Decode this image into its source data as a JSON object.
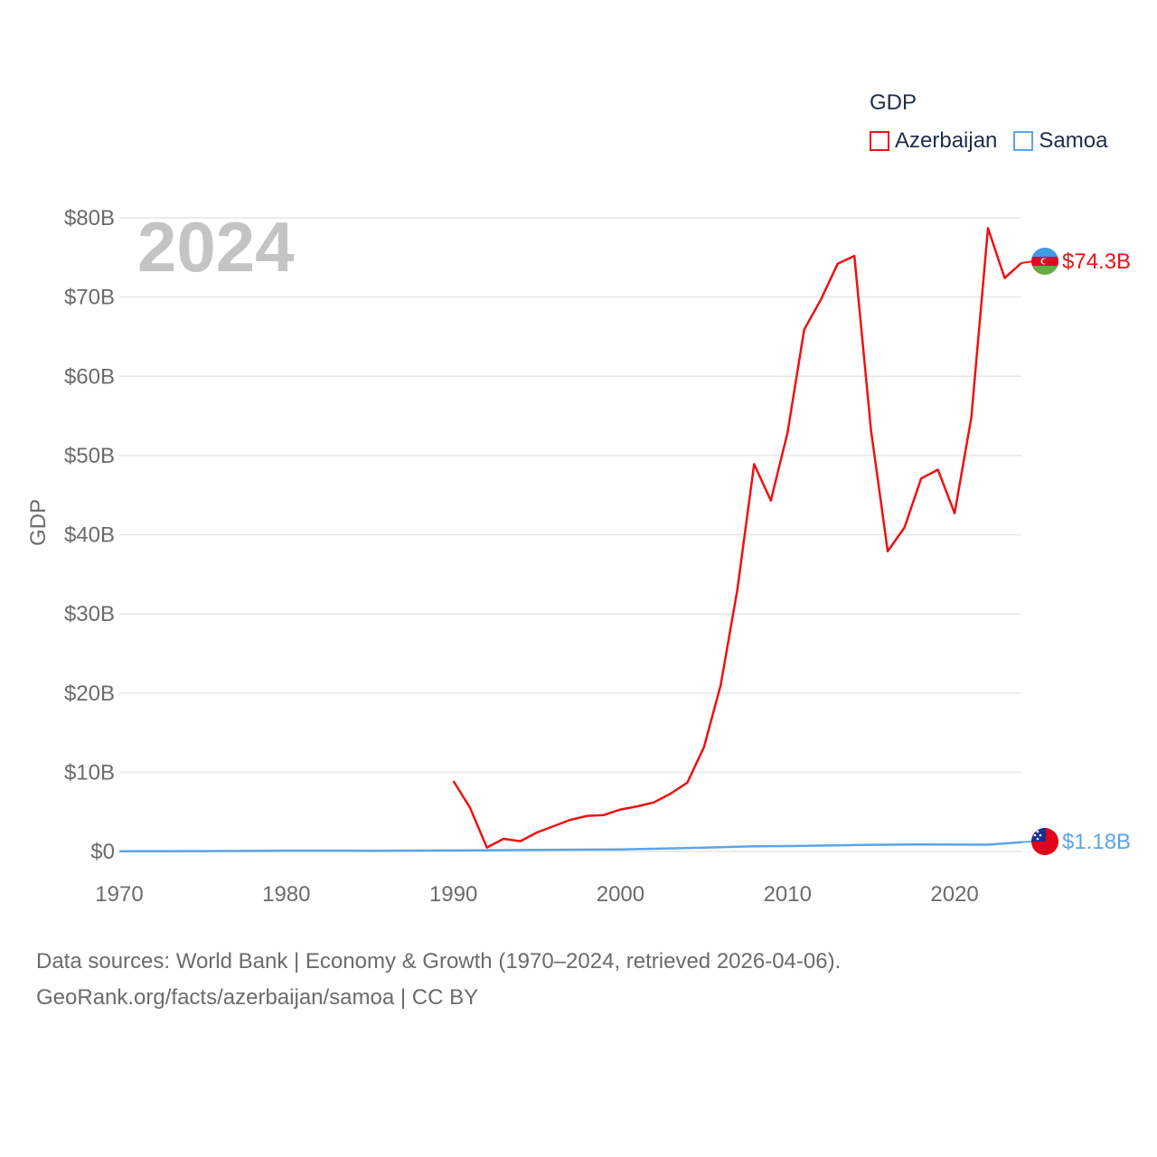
{
  "legend": {
    "title": "GDP",
    "items": [
      {
        "label": "Azerbaijan",
        "color": "#ee1111"
      },
      {
        "label": "Samoa",
        "color": "#5aa5e8"
      }
    ]
  },
  "chart_data": {
    "type": "line",
    "title": "",
    "year_watermark": "2024",
    "ylabel": "GDP",
    "xlabel": "",
    "xlim": [
      1970,
      2024
    ],
    "ylim": [
      0,
      80
    ],
    "y_unit": "billion USD",
    "x_ticks": [
      1970,
      1980,
      1990,
      2000,
      2010,
      2020
    ],
    "x_tick_labels": [
      "1970",
      "1980",
      "1990",
      "2000",
      "2010",
      "2020"
    ],
    "y_ticks": [
      0,
      10,
      20,
      30,
      40,
      50,
      60,
      70,
      80
    ],
    "y_tick_labels": [
      "$0",
      "$10B",
      "$20B",
      "$30B",
      "$40B",
      "$50B",
      "$60B",
      "$70B",
      "$80B"
    ],
    "grid": true,
    "series": [
      {
        "name": "Azerbaijan",
        "color": "#ee1111",
        "end_label": "$74.3B",
        "x": [
          1990,
          1991,
          1992,
          1993,
          1994,
          1995,
          1996,
          1997,
          1998,
          1999,
          2000,
          2001,
          2002,
          2003,
          2004,
          2005,
          2006,
          2007,
          2008,
          2009,
          2010,
          2011,
          2012,
          2013,
          2014,
          2015,
          2016,
          2017,
          2018,
          2019,
          2020,
          2021,
          2022,
          2023,
          2024
        ],
        "values": [
          8.9,
          5.5,
          0.5,
          1.6,
          1.3,
          2.4,
          3.2,
          4.0,
          4.5,
          4.6,
          5.3,
          5.7,
          6.2,
          7.3,
          8.7,
          13.2,
          21.0,
          33.1,
          48.9,
          44.3,
          52.9,
          65.9,
          69.7,
          74.2,
          75.2,
          53.1,
          37.9,
          40.9,
          47.1,
          48.2,
          42.7,
          54.8,
          78.7,
          72.4,
          74.3
        ]
      },
      {
        "name": "Samoa",
        "color": "#5aa5e8",
        "end_label": "$1.18B",
        "x": [
          1970,
          1975,
          1980,
          1985,
          1990,
          1995,
          2000,
          2005,
          2008,
          2010,
          2015,
          2018,
          2020,
          2022,
          2024
        ],
        "values": [
          0.03,
          0.05,
          0.1,
          0.09,
          0.12,
          0.2,
          0.26,
          0.48,
          0.65,
          0.68,
          0.84,
          0.88,
          0.87,
          0.86,
          1.18
        ]
      }
    ]
  },
  "source": {
    "line1": "Data sources: World Bank | Economy & Growth (1970–2024, retrieved 2026-04-06).",
    "line2": "GeoRank.org/facts/azerbaijan/samoa | CC BY"
  }
}
